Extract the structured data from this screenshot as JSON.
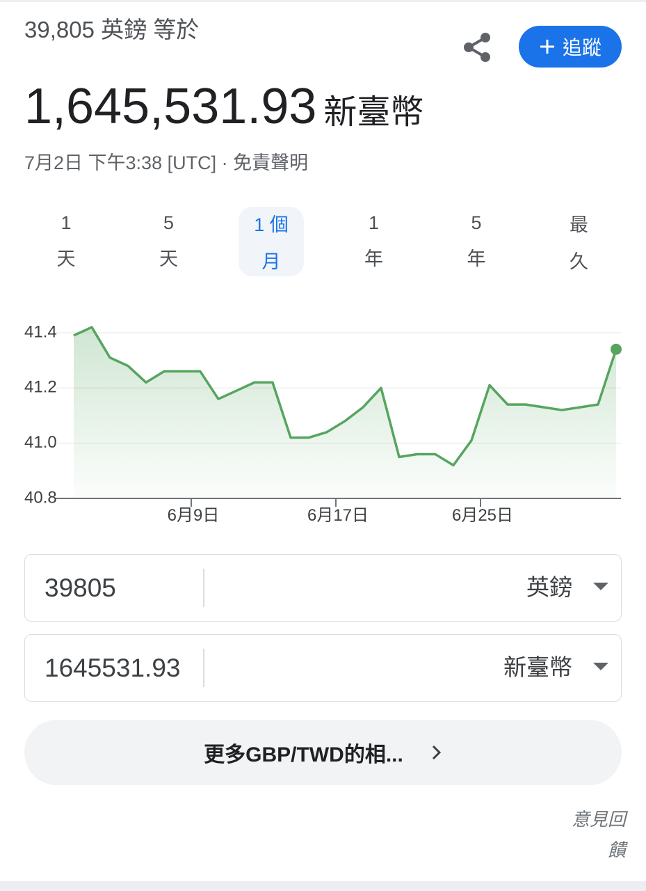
{
  "header": {
    "amount_line": "39,805 英鎊 等於",
    "result_value": "1,645,531.93",
    "result_unit": "新臺幣",
    "timestamp": "7月2日 下午3:38 [UTC] · 免責聲明",
    "follow_button": "追蹤"
  },
  "tabs": [
    [
      "1",
      "天"
    ],
    [
      "5",
      "天"
    ],
    [
      "1 個",
      "月"
    ],
    [
      "1",
      "年"
    ],
    [
      "5",
      "年"
    ],
    [
      "最",
      "久"
    ]
  ],
  "selected_tab": 2,
  "chart_data": {
    "type": "line",
    "categories": [
      null,
      null,
      null,
      null,
      null,
      null,
      null,
      "6月9日",
      null,
      null,
      null,
      null,
      null,
      null,
      null,
      "6月17日",
      null,
      null,
      null,
      null,
      null,
      null,
      null,
      "6月25日",
      null,
      null,
      null,
      null,
      null,
      null,
      null
    ],
    "values": [
      41.39,
      41.42,
      41.31,
      41.28,
      41.22,
      41.26,
      41.26,
      41.26,
      41.16,
      41.19,
      41.22,
      41.22,
      41.02,
      41.02,
      41.04,
      41.08,
      41.13,
      41.2,
      40.95,
      40.96,
      40.96,
      40.92,
      41.01,
      41.21,
      41.14,
      41.14,
      41.13,
      41.12,
      41.13,
      41.14,
      41.34
    ],
    "color": "#56a55f",
    "ylim": [
      40.8,
      41.4
    ],
    "yticks": [
      40.8,
      {
        "value": 41,
        "label": "41.0"
      },
      41.2,
      41.4
    ],
    "grid": true
  },
  "converter": [
    {
      "amount": "39805",
      "currency": "英鎊"
    },
    {
      "amount": "1645531.93",
      "currency": "新臺幣"
    }
  ],
  "more_link": "更多GBP/TWD的相...",
  "feedback": "意見回饋"
}
